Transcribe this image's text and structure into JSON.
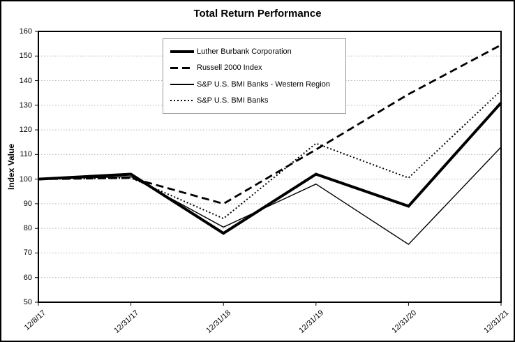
{
  "chart_data": {
    "type": "line",
    "title": "Total Return Performance",
    "xlabel": "",
    "ylabel": "Index Value",
    "ylim": [
      50,
      160
    ],
    "yticks": [
      50,
      60,
      70,
      80,
      90,
      100,
      110,
      120,
      130,
      140,
      150,
      160
    ],
    "categories": [
      "12/8/17",
      "12/31/17",
      "12/31/18",
      "12/31/19",
      "12/31/20",
      "12/31/21"
    ],
    "grid": true,
    "legend_position": "inside-top-center",
    "series": [
      {
        "name": "Luther Burbank Corporation",
        "style": "solid-thick",
        "values": [
          100,
          102,
          78,
          102,
          89,
          131
        ]
      },
      {
        "name": "Russell 2000 Index",
        "style": "dashed",
        "values": [
          100,
          100.5,
          90,
          112,
          134.5,
          154.5
        ]
      },
      {
        "name": "S&P U.S. BMI Banks - Western Region",
        "style": "solid-thin",
        "values": [
          100,
          101,
          80.5,
          98,
          73.5,
          113
        ]
      },
      {
        "name": "S&P U.S. BMI Banks",
        "style": "dotted",
        "values": [
          100,
          100.5,
          84,
          114.5,
          100.5,
          136
        ]
      }
    ],
    "colors": {
      "line": "#000000",
      "grid": "#b3b3b3",
      "plot_border": "#000000",
      "legend_border": "#9a9a9a",
      "background": "#ffffff"
    }
  }
}
